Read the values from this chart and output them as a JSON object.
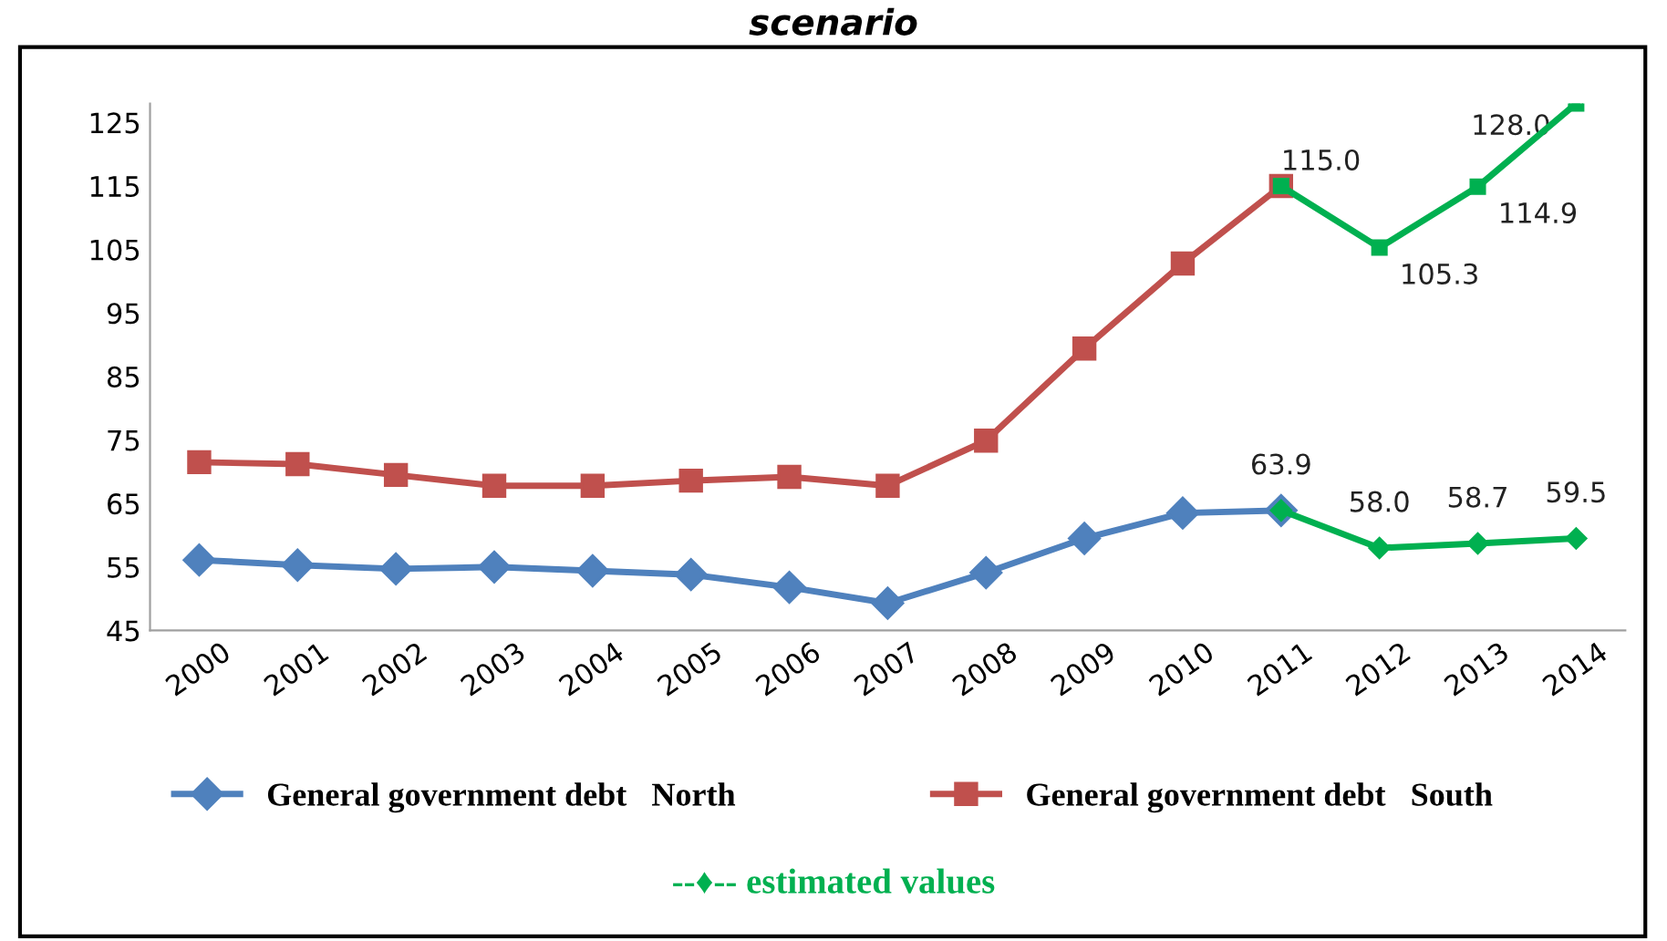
{
  "chart_data": {
    "type": "line",
    "title": "scenario",
    "categories": [
      "2000",
      "2001",
      "2002",
      "2003",
      "2004",
      "2005",
      "2006",
      "2007",
      "2008",
      "2009",
      "2010",
      "2011",
      "2012",
      "2013",
      "2014"
    ],
    "series": [
      {
        "name": "General government debt   North",
        "color": "#4f81bd",
        "marker": "diamond",
        "values": [
          56.1,
          55.3,
          54.7,
          55.0,
          54.4,
          53.8,
          51.8,
          49.3,
          54.1,
          59.5,
          63.5,
          63.9,
          null,
          null,
          null
        ]
      },
      {
        "name": "General government debt   South",
        "color": "#c0504d",
        "marker": "square",
        "values": [
          71.5,
          71.2,
          69.5,
          67.8,
          67.8,
          68.6,
          69.2,
          67.8,
          74.9,
          89.4,
          102.8,
          115.0,
          null,
          null,
          null
        ]
      },
      {
        "color": "#00b050",
        "marker": "diamond",
        "values": [
          null,
          null,
          null,
          null,
          null,
          null,
          null,
          null,
          null,
          null,
          null,
          63.9,
          58.0,
          58.7,
          59.5
        ],
        "value_labels": [
          null,
          null,
          null,
          null,
          null,
          null,
          null,
          null,
          null,
          null,
          null,
          "63.9",
          "58.0",
          "58.7",
          "59.5"
        ]
      },
      {
        "color": "#00b050",
        "marker": "square",
        "values": [
          null,
          null,
          null,
          null,
          null,
          null,
          null,
          null,
          null,
          null,
          null,
          115.0,
          105.3,
          114.9,
          128.0
        ],
        "value_labels": [
          null,
          null,
          null,
          null,
          null,
          null,
          null,
          null,
          null,
          null,
          null,
          "115.0",
          "105.3",
          "114.9",
          "128.0"
        ]
      }
    ],
    "ylim": [
      45,
      128
    ],
    "yticks": [
      45,
      55,
      65,
      75,
      85,
      95,
      105,
      115,
      125
    ],
    "grid": false,
    "legend": "bottom",
    "line_style": "solid",
    "annotations": [
      "--♦-- estimated values"
    ]
  }
}
